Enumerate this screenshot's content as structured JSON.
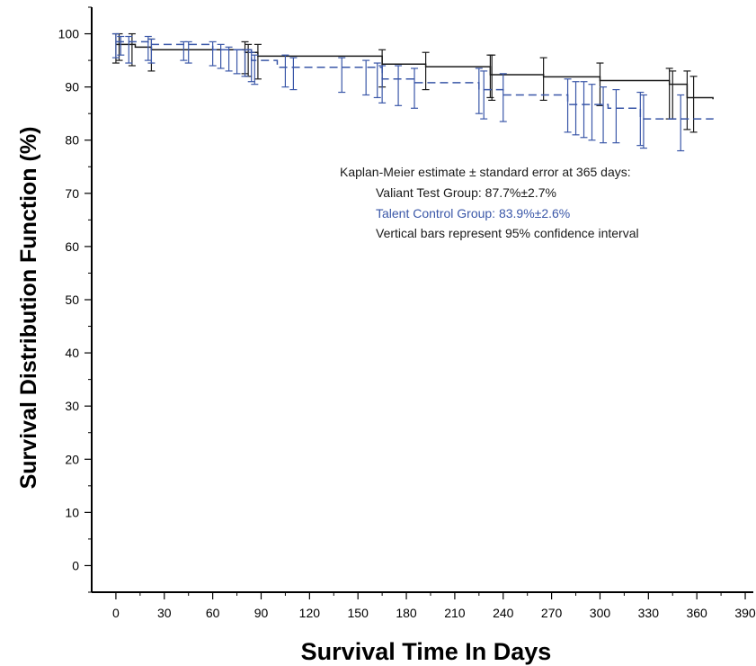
{
  "chart_data": {
    "type": "line",
    "step": true,
    "xlabel": "Survival Time In Days",
    "ylabel": "Survival Distribution Function (%)",
    "xlim": [
      -15,
      395
    ],
    "ylim": [
      -5,
      105
    ],
    "xticks": [
      0,
      30,
      60,
      90,
      120,
      150,
      180,
      210,
      240,
      270,
      300,
      330,
      360,
      390
    ],
    "yticks": [
      0,
      10,
      20,
      30,
      40,
      50,
      60,
      70,
      80,
      90,
      100
    ],
    "grid": false,
    "series": [
      {
        "name": "Valiant Test Group",
        "color": "#1a1a1a",
        "dash": false,
        "x": [
          0,
          12,
          22,
          80,
          88,
          165,
          192,
          232,
          265,
          300,
          343,
          354,
          370
        ],
        "y": [
          98.0,
          97.5,
          97.0,
          96.5,
          95.8,
          94.3,
          93.8,
          92.3,
          91.9,
          91.2,
          90.5,
          88.0,
          87.7
        ],
        "error_x": [
          0,
          2,
          10,
          22,
          80,
          82,
          88,
          165,
          192,
          232,
          233,
          265,
          300,
          343,
          345,
          354,
          358
        ],
        "error_low": [
          94.5,
          95.0,
          94.0,
          93.0,
          92.5,
          92.0,
          91.5,
          90.0,
          89.5,
          88.0,
          87.5,
          87.5,
          86.5,
          84.0,
          84.0,
          82.0,
          81.5
        ],
        "error_high": [
          100.0,
          100.0,
          100.0,
          99.0,
          98.5,
          98.0,
          98.0,
          97.0,
          96.5,
          96.0,
          96.0,
          95.5,
          94.5,
          93.5,
          93.0,
          93.0,
          92.0
        ]
      },
      {
        "name": "Talent Control Group",
        "color": "#3a57a8",
        "dash": true,
        "x": [
          0,
          20,
          60,
          84,
          100,
          165,
          185,
          225,
          240,
          280,
          305,
          325,
          370
        ],
        "y": [
          98.5,
          98.0,
          97.0,
          95.0,
          93.7,
          91.5,
          90.8,
          89.5,
          88.5,
          86.7,
          86.0,
          84.0,
          83.9
        ],
        "error_x": [
          0,
          3,
          8,
          20,
          22,
          42,
          45,
          60,
          65,
          70,
          75,
          80,
          84,
          86,
          105,
          110,
          140,
          155,
          162,
          165,
          175,
          185,
          225,
          228,
          240,
          280,
          285,
          290,
          295,
          302,
          310,
          325,
          327,
          350
        ],
        "error_low": [
          95.5,
          96.0,
          94.5,
          95.0,
          94.5,
          95.0,
          94.5,
          94.0,
          93.5,
          93.0,
          92.5,
          92.0,
          91.0,
          90.5,
          90.0,
          89.5,
          89.0,
          88.5,
          88.0,
          87.0,
          86.5,
          86.0,
          85.0,
          84.0,
          83.5,
          81.5,
          81.0,
          80.5,
          80.0,
          79.5,
          79.5,
          79.0,
          78.5,
          78.0
        ],
        "error_high": [
          100.0,
          99.5,
          99.5,
          99.5,
          99.0,
          98.5,
          98.5,
          98.5,
          98.0,
          97.5,
          97.0,
          97.0,
          96.5,
          96.0,
          96.0,
          95.5,
          95.5,
          95.0,
          94.5,
          94.0,
          94.0,
          93.5,
          93.5,
          93.0,
          92.5,
          91.5,
          91.0,
          91.0,
          90.5,
          90.0,
          89.5,
          89.0,
          88.5,
          88.5
        ]
      }
    ],
    "annotations": [
      {
        "text": "Kaplan-Meier estimate ± standard error at 365 days:",
        "color": "#1a1a1a"
      },
      {
        "text": "Valiant Test Group: 87.7%±2.7%",
        "color": "#1a1a1a"
      },
      {
        "text": "Talent Control Group: 83.9%±2.6%",
        "color": "#3a57a8"
      },
      {
        "text": "Vertical bars represent 95% confidence interval",
        "color": "#1a1a1a"
      }
    ]
  }
}
